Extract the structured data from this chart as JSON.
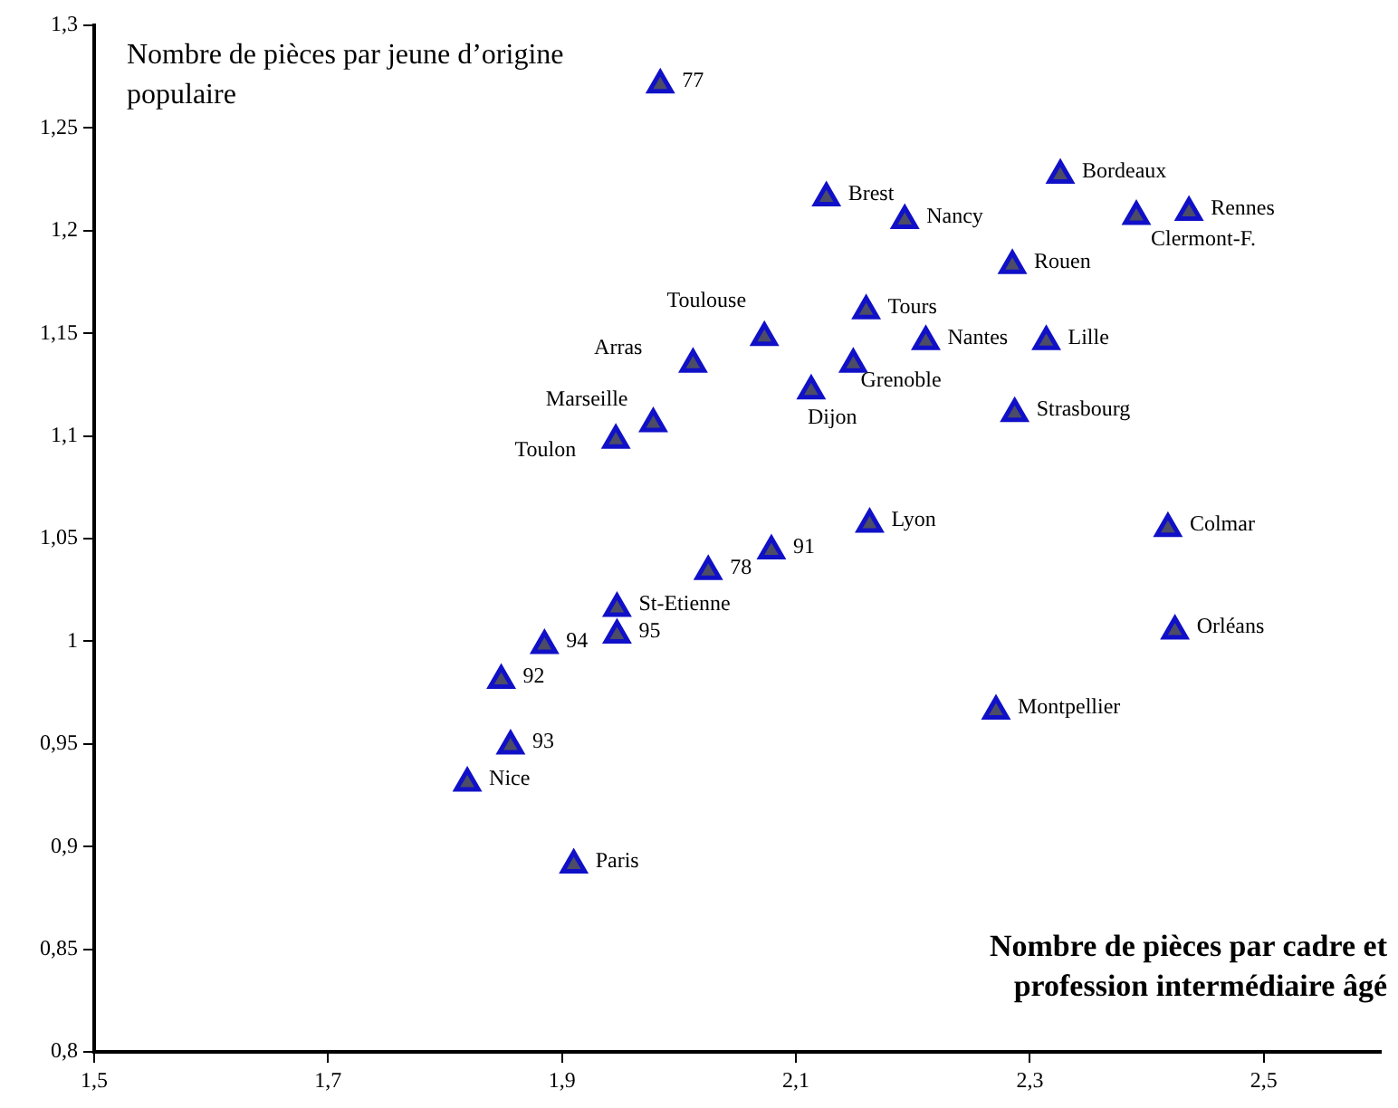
{
  "chart_data": {
    "type": "scatter",
    "ylabel": "Nombre de pièces par jeune d’origine populaire",
    "xlabel": "Nombre de pièces par cadre et profession intermédiaire âgé",
    "marker": "triangle",
    "series": [
      {
        "color": "#1010c8",
        "x": [
          1.984,
          2.126,
          2.193,
          2.326,
          2.391,
          2.436,
          2.285,
          2.16,
          2.073,
          2.012,
          2.211,
          2.314,
          2.149,
          2.113,
          2.287,
          1.978,
          1.946,
          2.163,
          2.418,
          2.079,
          2.025,
          1.947,
          1.947,
          1.885,
          1.848,
          1.856,
          1.819,
          1.91,
          2.424,
          2.271
        ],
        "values": [
          1.271,
          1.216,
          1.205,
          1.227,
          1.207,
          1.209,
          1.183,
          1.161,
          1.148,
          1.135,
          1.146,
          1.146,
          1.135,
          1.122,
          1.111,
          1.106,
          1.098,
          1.057,
          1.055,
          1.044,
          1.034,
          1.016,
          1.003,
          0.998,
          0.981,
          0.949,
          0.931,
          0.891,
          1.005,
          0.966
        ]
      }
    ],
    "annotations": [
      {
        "text": "77",
        "x": 1.984,
        "y": 1.271
      },
      {
        "text": "Brest",
        "x": 2.126,
        "y": 1.216
      },
      {
        "text": "Nancy",
        "x": 2.193,
        "y": 1.205
      },
      {
        "text": "Bordeaux",
        "x": 2.326,
        "y": 1.227
      },
      {
        "text": "Clermont-F.",
        "x": 2.391,
        "y": 1.207
      },
      {
        "text": "Rennes",
        "x": 2.436,
        "y": 1.209
      },
      {
        "text": "Rouen",
        "x": 2.285,
        "y": 1.183
      },
      {
        "text": "Tours",
        "x": 2.16,
        "y": 1.161
      },
      {
        "text": "Toulouse",
        "x": 2.073,
        "y": 1.148
      },
      {
        "text": "Arras",
        "x": 2.012,
        "y": 1.135
      },
      {
        "text": "Nantes",
        "x": 2.211,
        "y": 1.146
      },
      {
        "text": "Lille",
        "x": 2.314,
        "y": 1.146
      },
      {
        "text": "Grenoble",
        "x": 2.149,
        "y": 1.135
      },
      {
        "text": "Dijon",
        "x": 2.113,
        "y": 1.122
      },
      {
        "text": "Strasbourg",
        "x": 2.287,
        "y": 1.111
      },
      {
        "text": "Marseille",
        "x": 1.978,
        "y": 1.106
      },
      {
        "text": "Toulon",
        "x": 1.946,
        "y": 1.098
      },
      {
        "text": "Lyon",
        "x": 2.163,
        "y": 1.057
      },
      {
        "text": "Colmar",
        "x": 2.418,
        "y": 1.055
      },
      {
        "text": "91",
        "x": 2.079,
        "y": 1.044
      },
      {
        "text": "78",
        "x": 2.025,
        "y": 1.034
      },
      {
        "text": "St-Etienne",
        "x": 1.947,
        "y": 1.016
      },
      {
        "text": "95",
        "x": 1.947,
        "y": 1.003
      },
      {
        "text": "94",
        "x": 1.885,
        "y": 0.998
      },
      {
        "text": "92",
        "x": 1.848,
        "y": 0.981
      },
      {
        "text": "93",
        "x": 1.856,
        "y": 0.949
      },
      {
        "text": "Nice",
        "x": 1.819,
        "y": 0.931
      },
      {
        "text": "Paris",
        "x": 1.91,
        "y": 0.891
      },
      {
        "text": "Orléans",
        "x": 2.424,
        "y": 1.005
      },
      {
        "text": "Montpellier",
        "x": 2.271,
        "y": 0.966
      }
    ],
    "xlim": [
      1.5,
      2.6
    ],
    "xticks": [
      {
        "value": 1.5,
        "label": "1,5"
      },
      {
        "value": 1.7,
        "label": "1,7"
      },
      {
        "value": 1.9,
        "label": "1,9"
      },
      {
        "value": 2.1,
        "label": "2,1"
      },
      {
        "value": 2.3,
        "label": "2,3"
      },
      {
        "value": 2.5,
        "label": "2,5"
      }
    ],
    "ylim": [
      0.8,
      1.3
    ],
    "yticks": [
      {
        "value": 0.8,
        "label": "0,8"
      },
      {
        "value": 0.85,
        "label": "0,85"
      },
      {
        "value": 0.9,
        "label": "0,9"
      },
      {
        "value": 0.95,
        "label": "0,95"
      },
      {
        "value": 1,
        "label": "1"
      },
      {
        "value": 1.05,
        "label": "1,05"
      },
      {
        "value": 1.1,
        "label": "1,1"
      },
      {
        "value": 1.15,
        "label": "1,15"
      },
      {
        "value": 1.2,
        "label": "1,2"
      },
      {
        "value": 1.25,
        "label": "1,25"
      },
      {
        "value": 1.3,
        "label": "1,3"
      }
    ],
    "grid": false
  }
}
